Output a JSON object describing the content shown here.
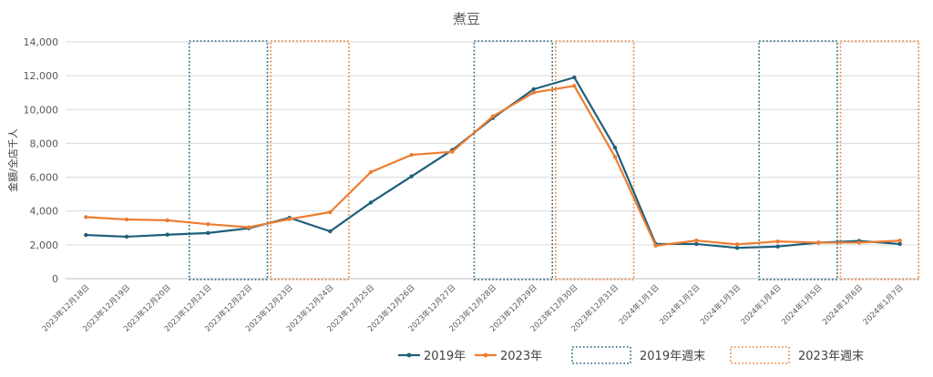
{
  "chart_data": {
    "type": "line",
    "title": "煮豆",
    "ylabel": "金額/全店千人",
    "xlabel": "",
    "ylim": [
      0,
      14000
    ],
    "yticks": [
      0,
      2000,
      4000,
      6000,
      8000,
      10000,
      12000,
      14000
    ],
    "ytick_labels": [
      "0",
      "2,000",
      "4,000",
      "6,000",
      "8,000",
      "10,000",
      "12,000",
      "14,000"
    ],
    "categories": [
      "2023年12月18日",
      "2023年12月19日",
      "2023年12月20日",
      "2023年12月21日",
      "2023年12月22日",
      "2023年12月23日",
      "2023年12月24日",
      "2023年12月25日",
      "2023年12月26日",
      "2023年12月27日",
      "2023年12月28日",
      "2023年12月29日",
      "2023年12月30日",
      "2023年12月31日",
      "2024年1月1日",
      "2024年1月2日",
      "2024年1月3日",
      "2024年1月4日",
      "2024年1月5日",
      "2024年1月6日",
      "2024年1月7日"
    ],
    "series": [
      {
        "name": "2019年",
        "color": "#1f5f7a",
        "values": [
          2580,
          2480,
          2600,
          2700,
          2980,
          3600,
          2800,
          4500,
          6050,
          7600,
          9500,
          11200,
          11900,
          7750,
          2050,
          2050,
          1820,
          1900,
          2130,
          2230,
          2050
        ]
      },
      {
        "name": "2023年",
        "color": "#ed7d31",
        "values": [
          3640,
          3500,
          3450,
          3220,
          3040,
          3520,
          3930,
          6300,
          7320,
          7500,
          9600,
          11000,
          11400,
          7200,
          1950,
          2250,
          2030,
          2200,
          2130,
          2130,
          2250
        ]
      }
    ],
    "weekend_bands": [
      {
        "name": "2019年週末",
        "color": "#1f5f7a",
        "style": "dotted",
        "ranges": [
          [
            3,
            4
          ],
          [
            10,
            11
          ],
          [
            17,
            18
          ]
        ]
      },
      {
        "name": "2023年週末",
        "color": "#ed7d31",
        "style": "dotted",
        "ranges": [
          [
            5,
            6
          ],
          [
            12,
            13
          ],
          [
            19,
            20
          ]
        ]
      }
    ],
    "legend": {
      "placement": "bottom",
      "entries": [
        "2019年",
        "2023年",
        "2019年週末",
        "2023年週末"
      ]
    },
    "grid": true
  }
}
